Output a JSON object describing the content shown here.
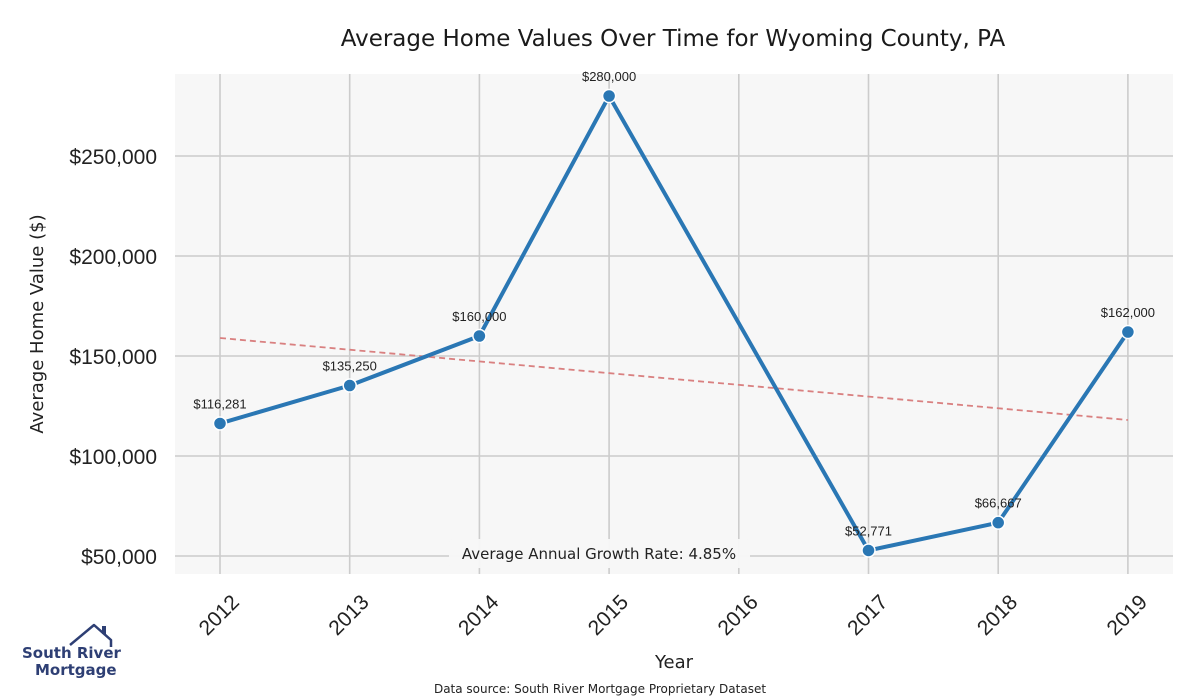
{
  "chart_data": {
    "type": "line",
    "title": "Average Home Values Over Time for Wyoming County, PA",
    "xlabel": "Year",
    "ylabel": "Average Home Value ($)",
    "x": [
      "2012",
      "2013",
      "2014",
      "2015",
      "2016",
      "2017",
      "2018",
      "2019"
    ],
    "series": [
      {
        "values": [
          116281,
          135250,
          160000,
          280000,
          null,
          52771,
          66667,
          162000
        ],
        "data_labels": [
          "$116,281",
          "$135,250",
          "$160,000",
          "$280,000",
          "",
          "$52,771",
          "$66,667",
          "$162,000"
        ],
        "color": "#2a77b4"
      }
    ],
    "trendline": {
      "start": 159000,
      "end": 118000,
      "color": "#d98080",
      "style": "dashed"
    },
    "yticks": [
      50000,
      100000,
      150000,
      200000,
      250000
    ],
    "ytick_labels": [
      "$50,000",
      "$100,000",
      "$150,000",
      "$200,000",
      "$250,000"
    ],
    "ylim": [
      40000,
      292000
    ],
    "grid": true,
    "background_color": "#f7f7f7",
    "annotation": "Average Annual Growth Rate: 4.85%",
    "source": "Data source: South River Mortgage Proprietary Dataset"
  },
  "logo": {
    "line1": "South River",
    "line2": "Mortgage",
    "color": "#2e3f74"
  }
}
